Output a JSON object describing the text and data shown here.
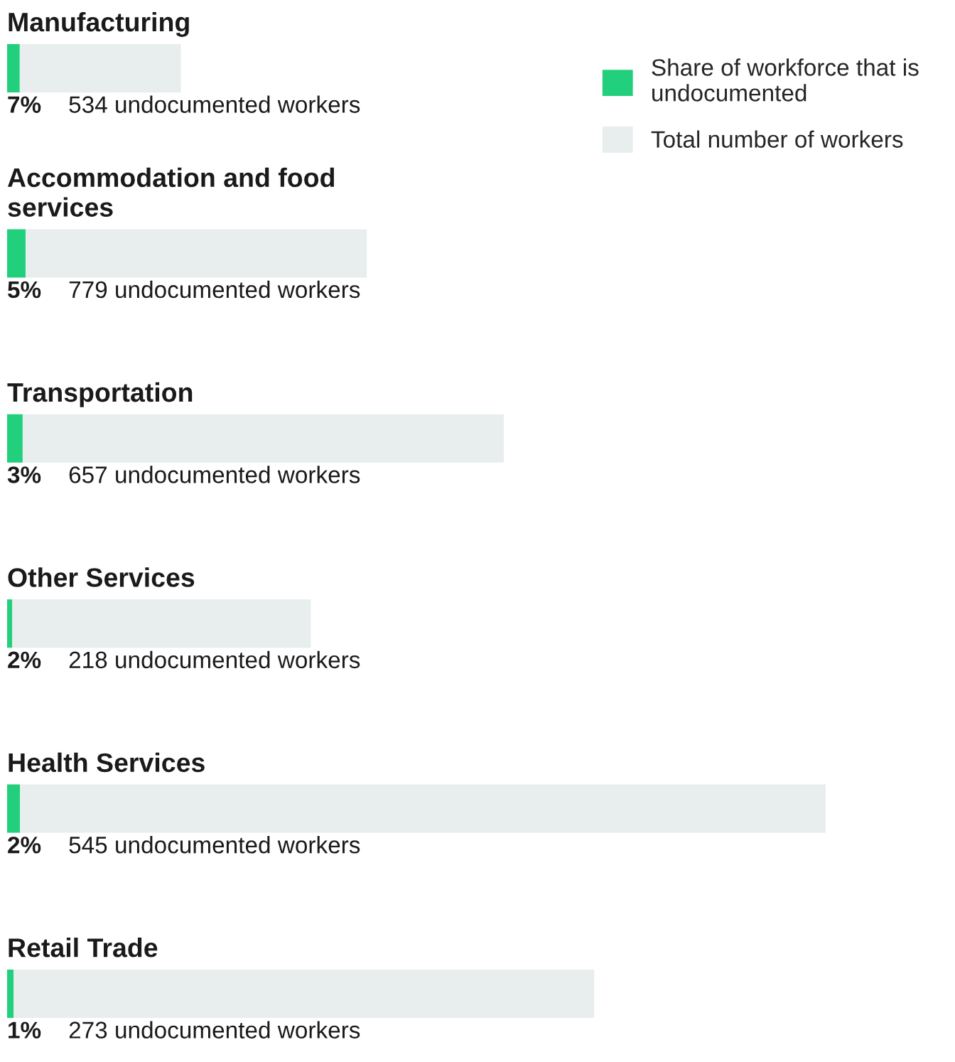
{
  "chart_data": {
    "type": "bar",
    "orientation": "horizontal",
    "stacked": true,
    "legend": "top right",
    "tick_labels": false,
    "categories": [
      "Manufacturing",
      "Accommodation and food services",
      "Transportation",
      "Other Services",
      "Health Services",
      "Retail Trade"
    ],
    "series": [
      {
        "name": "Share of workforce that is undocumented",
        "color": "#22cf7c",
        "values": [
          534,
          779,
          657,
          218,
          545,
          273
        ],
        "value_labels": [
          "534 undocumented workers",
          "779 undocumented workers",
          "657 undocumented workers",
          "218 undocumented workers",
          "545 undocumented workers",
          "273 undocumented workers"
        ]
      },
      {
        "name": "Total number of workers",
        "color": "#e8eded",
        "values": [
          6800,
          14400,
          20300,
          12600,
          34000,
          24500
        ]
      }
    ],
    "annotations": [
      "7%",
      "5%",
      "3%",
      "2%",
      "2%",
      "1%"
    ]
  }
}
